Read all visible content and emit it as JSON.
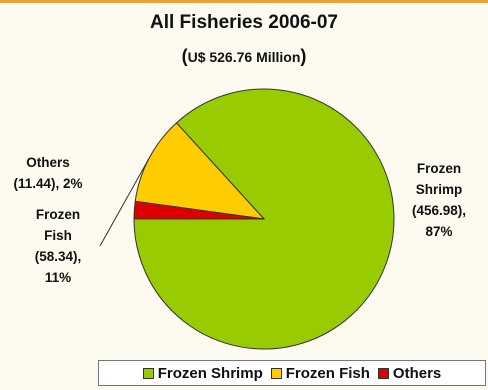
{
  "chart_data": {
    "type": "pie",
    "title": "All Fisheries 2006-07",
    "subtitle": "U$ 526.76 Million",
    "slices": [
      {
        "name": "Frozen Shrimp",
        "value": 456.98,
        "percent": "87%",
        "color": "#99cc00",
        "label_lines": [
          "Frozen",
          "Shrimp",
          "(456.98),",
          "87%"
        ]
      },
      {
        "name": "Frozen Fish",
        "value": 58.34,
        "percent": "11%",
        "color": "#ffcc00",
        "label_lines": [
          "Frozen",
          "Fish",
          "(58.34),",
          "11%"
        ]
      },
      {
        "name": "Others",
        "value": 11.44,
        "percent": "2%",
        "color": "#dd0000",
        "label_lines": [
          "Others",
          "(11.44), 2%"
        ]
      }
    ],
    "legend": [
      "Frozen Shrimp",
      "Frozen Fish",
      "Others"
    ],
    "legend_placement": "bottom"
  }
}
